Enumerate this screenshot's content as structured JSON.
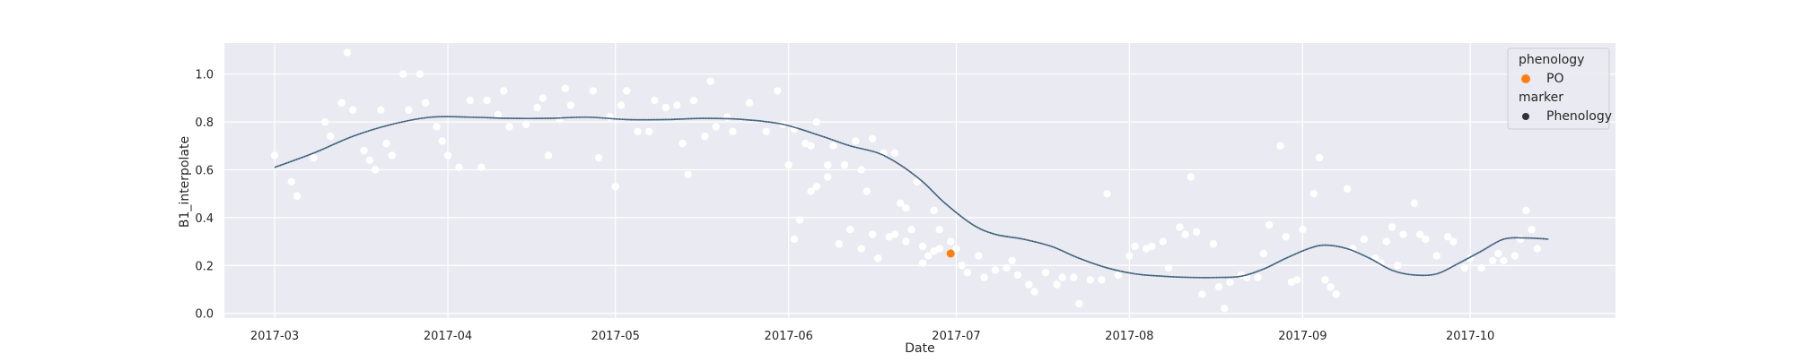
{
  "chart_data": {
    "type": "scatter",
    "title": "",
    "xlabel": "Date",
    "ylabel": "B1_interpolate",
    "x_range": [
      "2017-02-20",
      "2017-10-27"
    ],
    "ylim": [
      -0.02,
      1.13
    ],
    "grid": true,
    "background": "#eaeaf2",
    "x_ticks": [
      "2017-03-01",
      "2017-04-01",
      "2017-05-01",
      "2017-06-01",
      "2017-07-01",
      "2017-08-01",
      "2017-09-01",
      "2017-10-01"
    ],
    "x_tick_labels": [
      "2017-03",
      "2017-04",
      "2017-05",
      "2017-06",
      "2017-07",
      "2017-08",
      "2017-09",
      "2017-10"
    ],
    "y_ticks": [
      0.0,
      0.2,
      0.4,
      0.6,
      0.8,
      1.0
    ],
    "y_tick_labels": [
      "0.0",
      "0.2",
      "0.4",
      "0.6",
      "0.8",
      "1.0"
    ],
    "legend": {
      "placement": "top-right",
      "title_1": "phenology",
      "entry_1": "PO",
      "entry_1_color": "#ff7f0e",
      "title_2": "marker",
      "entry_2": "Phenology",
      "entry_2_color": "#333333"
    },
    "observations": {
      "color": "#ffffff",
      "points": [
        [
          "2017-03-01",
          0.66
        ],
        [
          "2017-03-04",
          0.55
        ],
        [
          "2017-03-05",
          0.49
        ],
        [
          "2017-03-08",
          0.65
        ],
        [
          "2017-03-10",
          0.8
        ],
        [
          "2017-03-11",
          0.74
        ],
        [
          "2017-03-13",
          0.88
        ],
        [
          "2017-03-14",
          1.09
        ],
        [
          "2017-03-15",
          0.85
        ],
        [
          "2017-03-17",
          0.68
        ],
        [
          "2017-03-18",
          0.64
        ],
        [
          "2017-03-19",
          0.6
        ],
        [
          "2017-03-20",
          0.85
        ],
        [
          "2017-03-21",
          0.71
        ],
        [
          "2017-03-22",
          0.66
        ],
        [
          "2017-03-24",
          1.0
        ],
        [
          "2017-03-25",
          0.85
        ],
        [
          "2017-03-27",
          1.0
        ],
        [
          "2017-03-28",
          0.88
        ],
        [
          "2017-03-30",
          0.78
        ],
        [
          "2017-03-31",
          0.72
        ],
        [
          "2017-04-01",
          0.66
        ],
        [
          "2017-04-03",
          0.61
        ],
        [
          "2017-04-05",
          0.89
        ],
        [
          "2017-04-07",
          0.61
        ],
        [
          "2017-04-08",
          0.89
        ],
        [
          "2017-04-10",
          0.83
        ],
        [
          "2017-04-11",
          0.93
        ],
        [
          "2017-04-12",
          0.78
        ],
        [
          "2017-04-15",
          0.79
        ],
        [
          "2017-04-17",
          0.86
        ],
        [
          "2017-04-18",
          0.9
        ],
        [
          "2017-04-19",
          0.66
        ],
        [
          "2017-04-21",
          0.81
        ],
        [
          "2017-04-22",
          0.94
        ],
        [
          "2017-04-23",
          0.87
        ],
        [
          "2017-04-27",
          0.93
        ],
        [
          "2017-04-28",
          0.65
        ],
        [
          "2017-04-30",
          0.82
        ],
        [
          "2017-05-01",
          0.53
        ],
        [
          "2017-05-02",
          0.87
        ],
        [
          "2017-05-03",
          0.93
        ],
        [
          "2017-05-05",
          0.76
        ],
        [
          "2017-05-07",
          0.76
        ],
        [
          "2017-05-08",
          0.89
        ],
        [
          "2017-05-10",
          0.86
        ],
        [
          "2017-05-12",
          0.87
        ],
        [
          "2017-05-13",
          0.71
        ],
        [
          "2017-05-14",
          0.58
        ],
        [
          "2017-05-15",
          0.89
        ],
        [
          "2017-05-17",
          0.74
        ],
        [
          "2017-05-18",
          0.97
        ],
        [
          "2017-05-19",
          0.78
        ],
        [
          "2017-05-21",
          0.82
        ],
        [
          "2017-05-22",
          0.76
        ],
        [
          "2017-05-25",
          0.88
        ],
        [
          "2017-05-28",
          0.76
        ],
        [
          "2017-05-30",
          0.93
        ],
        [
          "2017-05-31",
          0.79
        ],
        [
          "2017-06-01",
          0.62
        ],
        [
          "2017-06-02",
          0.77
        ],
        [
          "2017-06-04",
          0.71
        ],
        [
          "2017-06-05",
          0.7
        ],
        [
          "2017-06-06",
          0.8
        ],
        [
          "2017-06-08",
          0.62
        ],
        [
          "2017-06-09",
          0.7
        ],
        [
          "2017-06-11",
          0.62
        ],
        [
          "2017-06-13",
          0.72
        ],
        [
          "2017-06-14",
          0.6
        ],
        [
          "2017-06-15",
          0.51
        ],
        [
          "2017-06-16",
          0.73
        ],
        [
          "2017-06-18",
          0.67
        ],
        [
          "2017-06-20",
          0.67
        ],
        [
          "2017-06-21",
          0.46
        ],
        [
          "2017-06-22",
          0.3
        ],
        [
          "2017-06-24",
          0.55
        ],
        [
          "2017-06-25",
          0.28
        ],
        [
          "2017-06-27",
          0.43
        ],
        [
          "2017-06-28",
          0.35
        ],
        [
          "2017-06-30",
          0.3
        ],
        [
          "2017-06-02",
          0.31
        ],
        [
          "2017-06-03",
          0.39
        ],
        [
          "2017-06-05",
          0.51
        ],
        [
          "2017-06-06",
          0.53
        ],
        [
          "2017-06-08",
          0.57
        ],
        [
          "2017-06-10",
          0.29
        ],
        [
          "2017-06-12",
          0.35
        ],
        [
          "2017-06-14",
          0.27
        ],
        [
          "2017-06-16",
          0.33
        ],
        [
          "2017-06-17",
          0.23
        ],
        [
          "2017-06-19",
          0.32
        ],
        [
          "2017-06-20",
          0.33
        ],
        [
          "2017-06-22",
          0.44
        ],
        [
          "2017-06-23",
          0.35
        ],
        [
          "2017-06-25",
          0.21
        ],
        [
          "2017-06-26",
          0.24
        ],
        [
          "2017-06-27",
          0.26
        ],
        [
          "2017-06-28",
          0.27
        ],
        [
          "2017-07-01",
          0.27
        ],
        [
          "2017-07-02",
          0.2
        ],
        [
          "2017-07-03",
          0.17
        ],
        [
          "2017-07-05",
          0.24
        ],
        [
          "2017-07-06",
          0.15
        ],
        [
          "2017-07-08",
          0.18
        ],
        [
          "2017-07-10",
          0.19
        ],
        [
          "2017-07-11",
          0.22
        ],
        [
          "2017-07-12",
          0.16
        ],
        [
          "2017-07-14",
          0.12
        ],
        [
          "2017-07-15",
          0.09
        ],
        [
          "2017-07-17",
          0.17
        ],
        [
          "2017-07-19",
          0.12
        ],
        [
          "2017-07-20",
          0.15
        ],
        [
          "2017-07-22",
          0.15
        ],
        [
          "2017-07-23",
          0.04
        ],
        [
          "2017-07-25",
          0.14
        ],
        [
          "2017-07-27",
          0.14
        ],
        [
          "2017-07-28",
          0.5
        ],
        [
          "2017-07-30",
          0.16
        ],
        [
          "2017-08-01",
          0.24
        ],
        [
          "2017-08-02",
          0.28
        ],
        [
          "2017-08-04",
          0.27
        ],
        [
          "2017-08-05",
          0.28
        ],
        [
          "2017-08-07",
          0.3
        ],
        [
          "2017-08-08",
          0.19
        ],
        [
          "2017-08-10",
          0.36
        ],
        [
          "2017-08-11",
          0.33
        ],
        [
          "2017-08-12",
          0.57
        ],
        [
          "2017-08-13",
          0.34
        ],
        [
          "2017-08-14",
          0.08
        ],
        [
          "2017-08-16",
          0.29
        ],
        [
          "2017-08-17",
          0.11
        ],
        [
          "2017-08-18",
          0.02
        ],
        [
          "2017-08-19",
          0.13
        ],
        [
          "2017-08-21",
          0.16
        ],
        [
          "2017-08-22",
          0.15
        ],
        [
          "2017-08-24",
          0.15
        ],
        [
          "2017-08-25",
          0.25
        ],
        [
          "2017-08-26",
          0.37
        ],
        [
          "2017-08-28",
          0.7
        ],
        [
          "2017-08-29",
          0.32
        ],
        [
          "2017-08-30",
          0.13
        ],
        [
          "2017-08-31",
          0.14
        ],
        [
          "2017-09-01",
          0.35
        ],
        [
          "2017-09-03",
          0.5
        ],
        [
          "2017-09-04",
          0.65
        ],
        [
          "2017-09-05",
          0.14
        ],
        [
          "2017-09-06",
          0.11
        ],
        [
          "2017-09-07",
          0.08
        ],
        [
          "2017-09-09",
          0.52
        ],
        [
          "2017-09-10",
          0.27
        ],
        [
          "2017-09-12",
          0.31
        ],
        [
          "2017-09-14",
          0.23
        ],
        [
          "2017-09-15",
          0.21
        ],
        [
          "2017-09-16",
          0.3
        ],
        [
          "2017-09-17",
          0.36
        ],
        [
          "2017-09-18",
          0.2
        ],
        [
          "2017-09-19",
          0.33
        ],
        [
          "2017-09-21",
          0.46
        ],
        [
          "2017-09-22",
          0.33
        ],
        [
          "2017-09-23",
          0.31
        ],
        [
          "2017-09-25",
          0.24
        ],
        [
          "2017-09-27",
          0.32
        ],
        [
          "2017-09-28",
          0.3
        ],
        [
          "2017-09-30",
          0.19
        ],
        [
          "2017-10-01",
          0.23
        ],
        [
          "2017-10-03",
          0.19
        ],
        [
          "2017-10-05",
          0.22
        ],
        [
          "2017-10-06",
          0.25
        ],
        [
          "2017-10-07",
          0.22
        ],
        [
          "2017-10-09",
          0.24
        ],
        [
          "2017-10-10",
          0.31
        ],
        [
          "2017-10-11",
          0.43
        ],
        [
          "2017-10-12",
          0.35
        ],
        [
          "2017-10-13",
          0.27
        ]
      ]
    },
    "curve": {
      "color": "#4c6f8a",
      "points": [
        [
          "2017-03-01",
          0.61
        ],
        [
          "2017-03-08",
          0.67
        ],
        [
          "2017-03-15",
          0.74
        ],
        [
          "2017-03-22",
          0.79
        ],
        [
          "2017-03-29",
          0.82
        ],
        [
          "2017-04-05",
          0.82
        ],
        [
          "2017-04-12",
          0.815
        ],
        [
          "2017-04-19",
          0.815
        ],
        [
          "2017-04-26",
          0.82
        ],
        [
          "2017-05-03",
          0.81
        ],
        [
          "2017-05-10",
          0.81
        ],
        [
          "2017-05-17",
          0.815
        ],
        [
          "2017-05-24",
          0.81
        ],
        [
          "2017-05-31",
          0.79
        ],
        [
          "2017-06-07",
          0.74
        ],
        [
          "2017-06-12",
          0.7
        ],
        [
          "2017-06-17",
          0.67
        ],
        [
          "2017-06-21",
          0.62
        ],
        [
          "2017-06-25",
          0.55
        ],
        [
          "2017-06-29",
          0.46
        ],
        [
          "2017-07-04",
          0.37
        ],
        [
          "2017-07-08",
          0.33
        ],
        [
          "2017-07-13",
          0.31
        ],
        [
          "2017-07-18",
          0.28
        ],
        [
          "2017-07-23",
          0.23
        ],
        [
          "2017-07-28",
          0.19
        ],
        [
          "2017-08-02",
          0.165
        ],
        [
          "2017-08-07",
          0.155
        ],
        [
          "2017-08-12",
          0.15
        ],
        [
          "2017-08-17",
          0.15
        ],
        [
          "2017-08-21",
          0.155
        ],
        [
          "2017-08-25",
          0.185
        ],
        [
          "2017-08-29",
          0.23
        ],
        [
          "2017-09-02",
          0.27
        ],
        [
          "2017-09-05",
          0.285
        ],
        [
          "2017-09-09",
          0.27
        ],
        [
          "2017-09-13",
          0.23
        ],
        [
          "2017-09-17",
          0.18
        ],
        [
          "2017-09-21",
          0.16
        ],
        [
          "2017-09-25",
          0.165
        ],
        [
          "2017-09-29",
          0.21
        ],
        [
          "2017-10-03",
          0.26
        ],
        [
          "2017-10-07",
          0.31
        ],
        [
          "2017-10-11",
          0.315
        ],
        [
          "2017-10-15",
          0.31
        ]
      ]
    },
    "phenology_point": {
      "name": "PO",
      "color": "#ff7f0e",
      "point": [
        "2017-06-30",
        0.25
      ]
    }
  }
}
